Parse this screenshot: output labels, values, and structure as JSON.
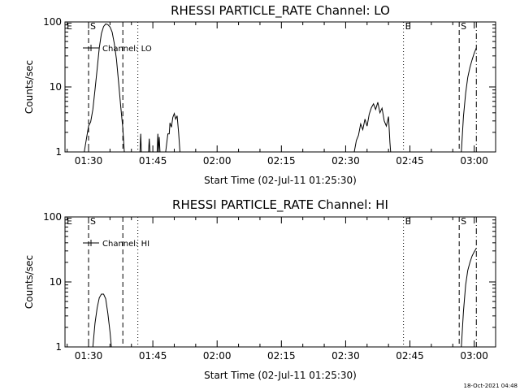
{
  "timestamp": "18-Oct-2021 04:48",
  "chart_data": [
    {
      "type": "line",
      "title": "RHESSI PARTICLE_RATE Channel: LO",
      "xlabel": "Start Time (02-Jul-11 01:25:30)",
      "ylabel": "Counts/sec",
      "yscale": "log",
      "ylim": [
        1,
        100
      ],
      "xlim": [
        "01:24:30",
        "03:05:00"
      ],
      "x_ticks": [
        "01:30",
        "01:45",
        "02:00",
        "02:15",
        "02:30",
        "02:45",
        "03:00"
      ],
      "y_ticks": [
        "1",
        "10",
        "100"
      ],
      "legend_label": "Channel: LO",
      "legend_position": "top-left",
      "event_lines": [
        {
          "time": "01:30:00",
          "style": "dashed",
          "label": "S"
        },
        {
          "time": "01:38:00",
          "style": "dashed",
          "label": ""
        },
        {
          "time": "01:41:30",
          "style": "dotted",
          "label": ""
        },
        {
          "time": "02:43:30",
          "style": "dotted",
          "label": "E"
        },
        {
          "time": "02:56:30",
          "style": "dashed",
          "label": "S"
        },
        {
          "time": "03:00:30",
          "style": "dashdot",
          "label": ""
        }
      ],
      "edge_marker": "E",
      "series": [
        {
          "segments": [
            [
              [
                "01:29:00",
                1
              ],
              [
                "01:29:30",
                1.6
              ],
              [
                "01:30:00",
                2.5
              ],
              [
                "01:30:30",
                2.9
              ],
              [
                "01:31:00",
                4.5
              ],
              [
                "01:31:30",
                9
              ],
              [
                "01:32:00",
                19
              ],
              [
                "01:32:30",
                40
              ],
              [
                "01:33:00",
                66
              ],
              [
                "01:33:30",
                85
              ],
              [
                "01:34:00",
                93
              ],
              [
                "01:34:30",
                91
              ],
              [
                "01:35:00",
                84
              ],
              [
                "01:35:30",
                70
              ],
              [
                "01:36:00",
                47
              ],
              [
                "01:36:30",
                27
              ],
              [
                "01:37:00",
                12
              ],
              [
                "01:37:30",
                5
              ],
              [
                "01:38:00",
                2.3
              ],
              [
                "01:38:20",
                1
              ]
            ],
            [
              [
                "01:42:00",
                1
              ],
              [
                "01:42:10",
                1.9
              ],
              [
                "01:42:20",
                1
              ]
            ],
            [
              [
                "01:44:00",
                1
              ],
              [
                "01:44:10",
                1.6
              ],
              [
                "01:44:20",
                1
              ]
            ],
            [
              [
                "01:46:00",
                1
              ],
              [
                "01:46:10",
                1.9
              ],
              [
                "01:46:20",
                1
              ],
              [
                "01:46:30",
                1.7
              ],
              [
                "01:46:40",
                1
              ]
            ],
            [
              [
                "01:48:00",
                1
              ],
              [
                "01:48:30",
                1.9
              ],
              [
                "01:48:50",
                1.9
              ],
              [
                "01:49:00",
                2.8
              ],
              [
                "01:49:20",
                2.4
              ],
              [
                "01:49:40",
                3.4
              ],
              [
                "01:50:00",
                3.9
              ],
              [
                "01:50:20",
                3.2
              ],
              [
                "01:50:40",
                3.6
              ],
              [
                "01:51:00",
                2
              ],
              [
                "01:51:20",
                1
              ]
            ],
            [
              [
                "02:32:00",
                1
              ],
              [
                "02:32:30",
                1.5
              ],
              [
                "02:33:00",
                1.8
              ],
              [
                "02:33:30",
                2.7
              ],
              [
                "02:34:00",
                2.2
              ],
              [
                "02:34:30",
                3.2
              ],
              [
                "02:35:00",
                2.5
              ],
              [
                "02:35:30",
                3.8
              ],
              [
                "02:36:00",
                4.8
              ],
              [
                "02:36:30",
                5.5
              ],
              [
                "02:37:00",
                4.5
              ],
              [
                "02:37:30",
                5.8
              ],
              [
                "02:38:00",
                4
              ],
              [
                "02:38:30",
                4.7
              ],
              [
                "02:39:00",
                3
              ],
              [
                "02:39:30",
                2.5
              ],
              [
                "02:40:00",
                3.5
              ],
              [
                "02:40:20",
                1.4
              ],
              [
                "02:40:30",
                1
              ]
            ],
            [
              [
                "02:57:00",
                1
              ],
              [
                "02:57:30",
                3.5
              ],
              [
                "02:58:00",
                8
              ],
              [
                "02:58:30",
                14
              ],
              [
                "02:59:00",
                20
              ],
              [
                "02:59:30",
                26
              ],
              [
                "03:00:00",
                33
              ],
              [
                "03:00:30",
                40
              ]
            ]
          ]
        }
      ]
    },
    {
      "type": "line",
      "title": "RHESSI PARTICLE_RATE Channel: HI",
      "xlabel": "Start Time (02-Jul-11 01:25:30)",
      "ylabel": "Counts/sec",
      "yscale": "log",
      "ylim": [
        1,
        100
      ],
      "xlim": [
        "01:24:30",
        "03:05:00"
      ],
      "x_ticks": [
        "01:30",
        "01:45",
        "02:00",
        "02:15",
        "02:30",
        "02:45",
        "03:00"
      ],
      "y_ticks": [
        "1",
        "10",
        "100"
      ],
      "legend_label": "Channel: HI",
      "legend_position": "top-left",
      "event_lines": [
        {
          "time": "01:30:00",
          "style": "dashed",
          "label": "S"
        },
        {
          "time": "01:38:00",
          "style": "dashed",
          "label": ""
        },
        {
          "time": "01:41:30",
          "style": "dotted",
          "label": ""
        },
        {
          "time": "02:43:30",
          "style": "dotted",
          "label": "E"
        },
        {
          "time": "02:56:30",
          "style": "dashed",
          "label": "S"
        },
        {
          "time": "03:00:30",
          "style": "dashdot",
          "label": ""
        }
      ],
      "edge_marker": "E",
      "series": [
        {
          "segments": [
            [
              [
                "01:31:00",
                1
              ],
              [
                "01:31:30",
                2.3
              ],
              [
                "01:32:00",
                4
              ],
              [
                "01:32:30",
                5.7
              ],
              [
                "01:33:00",
                6.5
              ],
              [
                "01:33:30",
                6.5
              ],
              [
                "01:34:00",
                5.5
              ],
              [
                "01:34:30",
                3.3
              ],
              [
                "01:35:00",
                1.7
              ],
              [
                "01:35:20",
                1
              ]
            ],
            [
              [
                "02:57:00",
                1
              ],
              [
                "02:57:30",
                3.5
              ],
              [
                "02:58:00",
                9
              ],
              [
                "02:58:30",
                15
              ],
              [
                "02:59:00",
                20
              ],
              [
                "02:59:30",
                25
              ],
              [
                "03:00:00",
                29
              ],
              [
                "03:00:30",
                33
              ]
            ]
          ]
        }
      ]
    }
  ]
}
